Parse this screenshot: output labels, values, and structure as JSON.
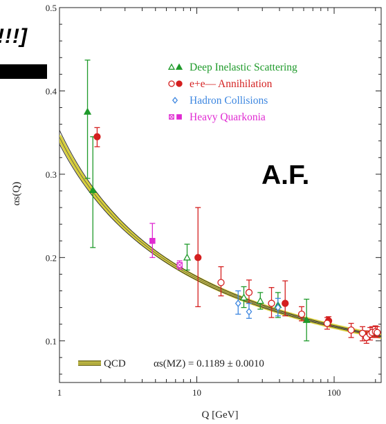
{
  "overlay": {
    "bracket_text": "!!!]",
    "af_label": "A.F."
  },
  "colors": {
    "dis": "#1e9a2a",
    "ee": "#d41f1f",
    "hadron": "#3c86e0",
    "quarkonia": "#e02ad2",
    "band": "#d8cf3a",
    "axis": "#222222"
  },
  "chart_data": {
    "type": "scatter",
    "title": "",
    "xlabel": "Q [GeV]",
    "ylabel": "αs(Q)",
    "xscale": "log",
    "xlim": [
      1,
      220
    ],
    "ylim": [
      0.05,
      0.5
    ],
    "x_ticks": [
      1,
      10,
      100
    ],
    "y_ticks": [
      0.1,
      0.2,
      0.3,
      0.4,
      0.5
    ],
    "legend_position": "top-center",
    "series": [
      {
        "name": "Deep Inelastic Scattering",
        "color": "#1e9a2a",
        "points": [
          {
            "x": 1.6,
            "y": 0.375,
            "lo": 0.295,
            "hi": 0.437,
            "open": false,
            "marker": "triangle"
          },
          {
            "x": 1.75,
            "y": 0.281,
            "lo": 0.212,
            "hi": 0.345,
            "open": false,
            "marker": "triangle"
          },
          {
            "x": 8.5,
            "y": 0.2,
            "lo": 0.185,
            "hi": 0.216,
            "open": true,
            "marker": "triangle"
          },
          {
            "x": 22,
            "y": 0.152,
            "lo": 0.14,
            "hi": 0.165,
            "open": true,
            "marker": "triangle"
          },
          {
            "x": 29,
            "y": 0.148,
            "lo": 0.138,
            "hi": 0.158,
            "open": true,
            "marker": "triangle"
          },
          {
            "x": 39,
            "y": 0.143,
            "lo": 0.128,
            "hi": 0.158,
            "open": false,
            "marker": "triangle"
          },
          {
            "x": 63,
            "y": 0.125,
            "lo": 0.1,
            "hi": 0.15,
            "open": false,
            "marker": "triangle"
          }
        ]
      },
      {
        "name": "e+e—  Annihilation",
        "color": "#d41f1f",
        "points": [
          {
            "x": 1.88,
            "y": 0.345,
            "lo": 0.333,
            "hi": 0.356,
            "open": false,
            "marker": "circle"
          },
          {
            "x": 10.2,
            "y": 0.2,
            "lo": 0.141,
            "hi": 0.26,
            "open": false,
            "marker": "circle"
          },
          {
            "x": 15,
            "y": 0.17,
            "lo": 0.154,
            "hi": 0.189,
            "open": true,
            "marker": "circle"
          },
          {
            "x": 24,
            "y": 0.158,
            "lo": 0.145,
            "hi": 0.173,
            "open": true,
            "marker": "circle"
          },
          {
            "x": 35,
            "y": 0.145,
            "lo": 0.128,
            "hi": 0.164,
            "open": true,
            "marker": "circle"
          },
          {
            "x": 44,
            "y": 0.145,
            "lo": 0.13,
            "hi": 0.172,
            "open": false,
            "marker": "circle"
          },
          {
            "x": 58,
            "y": 0.132,
            "lo": 0.124,
            "hi": 0.141,
            "open": true,
            "marker": "circle"
          },
          {
            "x": 91.2,
            "y": 0.124,
            "lo": 0.118,
            "hi": 0.129,
            "open": false,
            "marker": "circle"
          },
          {
            "x": 89,
            "y": 0.121,
            "lo": 0.114,
            "hi": 0.128,
            "open": true,
            "marker": "circle"
          },
          {
            "x": 133,
            "y": 0.113,
            "lo": 0.104,
            "hi": 0.121,
            "open": true,
            "marker": "circle"
          },
          {
            "x": 161,
            "y": 0.109,
            "lo": 0.1,
            "hi": 0.117,
            "open": true,
            "marker": "circle"
          },
          {
            "x": 172,
            "y": 0.104,
            "lo": 0.097,
            "hi": 0.112,
            "open": true,
            "marker": "circle"
          },
          {
            "x": 183,
            "y": 0.108,
            "lo": 0.101,
            "hi": 0.116,
            "open": true,
            "marker": "circle"
          },
          {
            "x": 189,
            "y": 0.11,
            "lo": 0.104,
            "hi": 0.117,
            "open": true,
            "marker": "circle"
          },
          {
            "x": 200,
            "y": 0.111,
            "lo": 0.105,
            "hi": 0.118,
            "open": true,
            "marker": "circle"
          },
          {
            "x": 206,
            "y": 0.11,
            "lo": 0.104,
            "hi": 0.117,
            "open": true,
            "marker": "circle"
          }
        ]
      },
      {
        "name": "Hadron Collisions",
        "color": "#3c86e0",
        "points": [
          {
            "x": 20,
            "y": 0.145,
            "lo": 0.132,
            "hi": 0.16,
            "open": true,
            "marker": "diamond"
          },
          {
            "x": 24,
            "y": 0.135,
            "lo": 0.127,
            "hi": 0.145,
            "open": true,
            "marker": "diamond"
          },
          {
            "x": 39,
            "y": 0.14,
            "lo": 0.13,
            "hi": 0.151,
            "open": true,
            "marker": "diamond"
          }
        ]
      },
      {
        "name": "Heavy Quarkonia",
        "color": "#e02ad2",
        "points": [
          {
            "x": 4.75,
            "y": 0.22,
            "lo": 0.2,
            "hi": 0.241,
            "open": false,
            "marker": "square"
          },
          {
            "x": 7.5,
            "y": 0.191,
            "lo": 0.186,
            "hi": 0.196,
            "open": true,
            "marker": "square"
          }
        ]
      }
    ],
    "qcd_band": {
      "name": "QCD",
      "alpha_mz": 0.1189,
      "alpha_mz_error": 0.001,
      "mz": 91.1876
    },
    "annotation": "αs(MZ) = 0.1189 ± 0.0010"
  }
}
